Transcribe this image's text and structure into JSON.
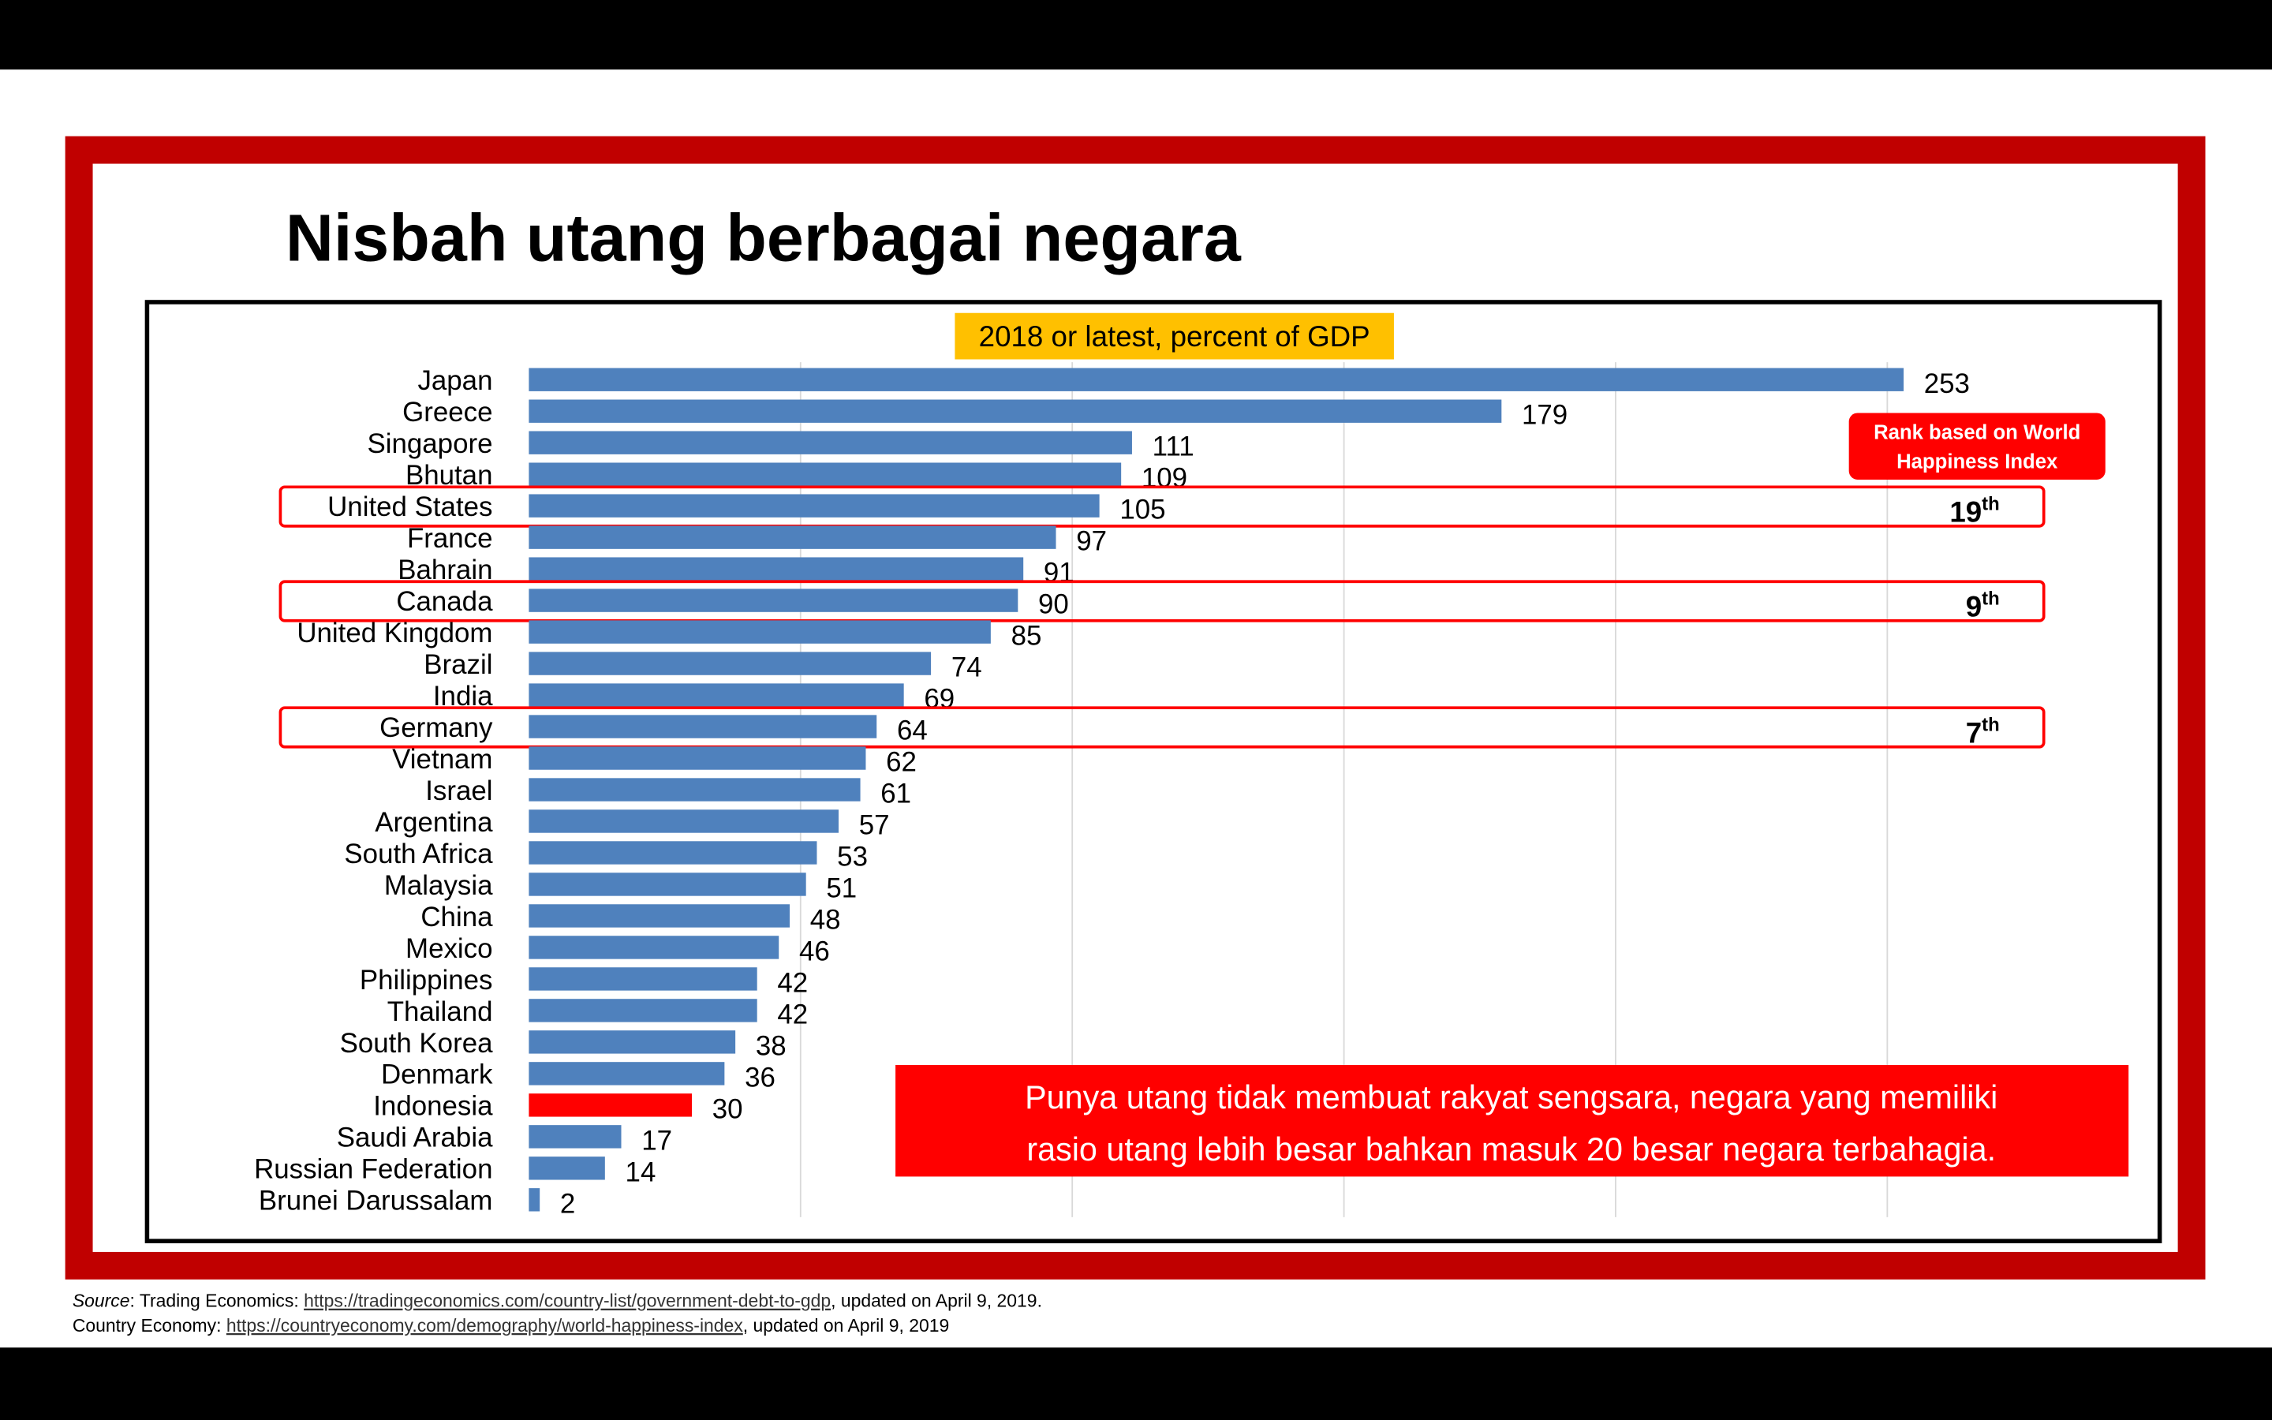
{
  "chart_data": {
    "type": "hbar",
    "title": "Nisbah utang berbagai negara",
    "subtitle": "2018 or latest, percent of GDP",
    "categories": [
      "Japan",
      "Greece",
      "Singapore",
      "Bhutan",
      "United States",
      "France",
      "Bahrain",
      "Canada",
      "United Kingdom",
      "Brazil",
      "India",
      "Germany",
      "Vietnam",
      "Israel",
      "Argentina",
      "South Africa",
      "Malaysia",
      "China",
      "Mexico",
      "Philippines",
      "Thailand",
      "South Korea",
      "Denmark",
      "Indonesia",
      "Saudi Arabia",
      "Russian Federation",
      "Brunei Darussalam"
    ],
    "values": [
      253,
      179,
      111,
      109,
      105,
      97,
      91,
      90,
      85,
      74,
      69,
      64,
      62,
      61,
      57,
      53,
      51,
      48,
      46,
      42,
      42,
      38,
      36,
      30,
      17,
      14,
      2
    ],
    "colors": [
      "#4f81bd",
      "#4f81bd",
      "#4f81bd",
      "#4f81bd",
      "#4f81bd",
      "#4f81bd",
      "#4f81bd",
      "#4f81bd",
      "#4f81bd",
      "#4f81bd",
      "#4f81bd",
      "#4f81bd",
      "#4f81bd",
      "#4f81bd",
      "#4f81bd",
      "#4f81bd",
      "#4f81bd",
      "#4f81bd",
      "#4f81bd",
      "#4f81bd",
      "#4f81bd",
      "#4f81bd",
      "#4f81bd",
      "#ff0000",
      "#4f81bd",
      "#4f81bd",
      "#4f81bd"
    ],
    "xlim": [
      0,
      300
    ],
    "xticks": [
      50,
      100,
      150,
      200,
      250
    ],
    "grid": true,
    "rank_title_lines": [
      "Rank based on World",
      "Happiness Index"
    ],
    "happiness_rank": [
      null,
      null,
      null,
      null,
      19,
      null,
      null,
      9,
      null,
      null,
      null,
      7,
      null,
      null,
      null,
      null,
      null,
      null,
      null,
      null,
      null,
      null,
      null,
      null,
      null,
      null,
      null
    ],
    "rank_suffix": "th",
    "callout_lines": [
      "Punya utang tidak membuat rakyat sengsara, negara yang memiliki",
      "rasio utang lebih besar bahkan masuk 20 besar negara terbahagia."
    ],
    "source": [
      {
        "italic": "Source",
        "text": ": Trading Economics: ",
        "url": "https://tradingeconomics.com/country-list/government-debt-to-gdp",
        "after": ", updated on April 9, 2019."
      },
      {
        "text": "Country Economy: ",
        "url": "https://countryeconomy.com/demography/world-happiness-index",
        "after": ", updated on April 9, 2019"
      }
    ]
  }
}
